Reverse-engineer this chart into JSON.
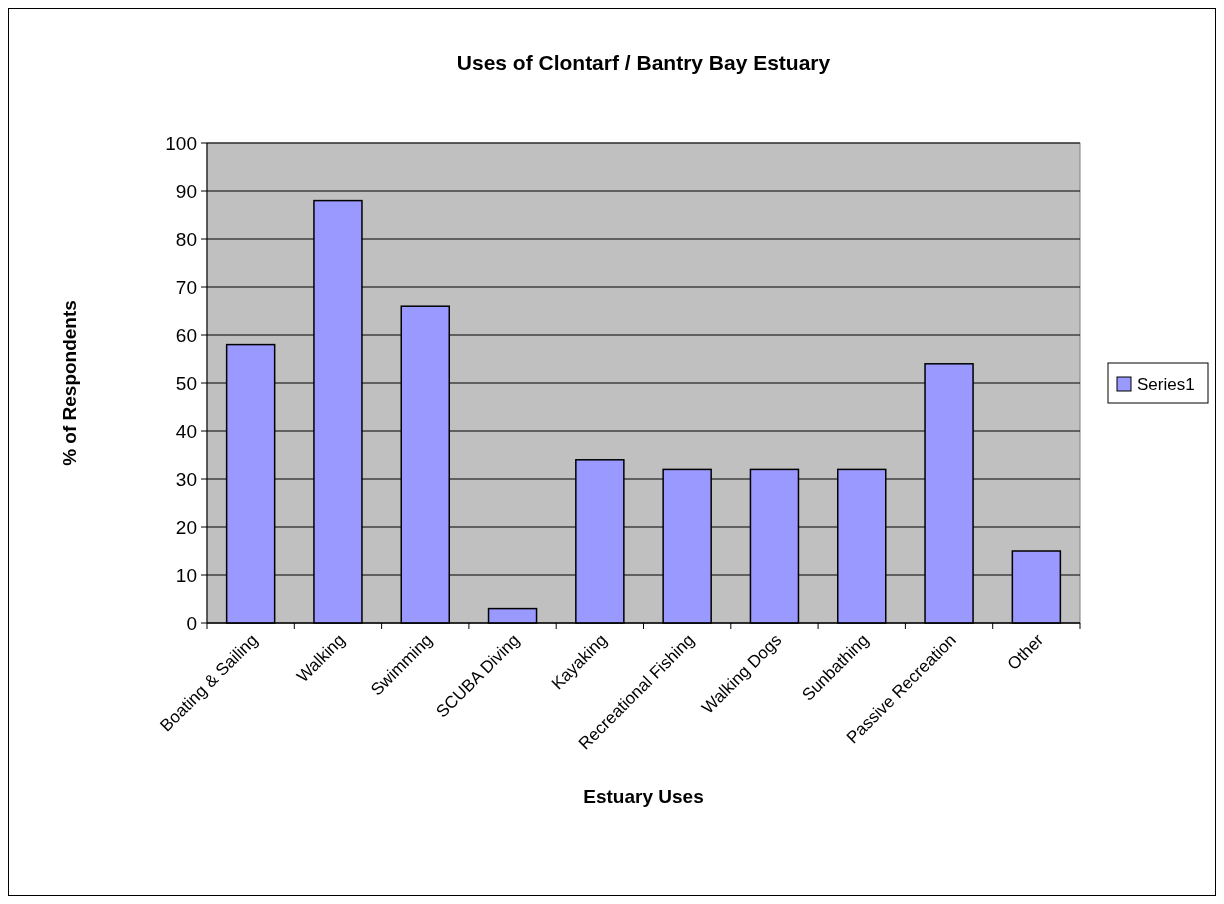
{
  "chart_data": {
    "type": "bar",
    "title": "Uses of Clontarf / Bantry Bay Estuary",
    "xlabel": "Estuary Uses",
    "ylabel": "% of Respondents",
    "categories": [
      "Boating & Sailing",
      "Walking",
      "Swimming",
      "SCUBA Diving",
      "Kayaking",
      "Recreational Fishing",
      "Walking Dogs",
      "Sunbathing",
      "Passive Recreation",
      "Other"
    ],
    "series": [
      {
        "name": "Series1",
        "color": "#9999ff",
        "values": [
          58,
          88,
          66,
          3,
          34,
          32,
          32,
          32,
          54,
          15
        ]
      }
    ],
    "ylim": [
      0,
      100
    ],
    "yticks": [
      0,
      10,
      20,
      30,
      40,
      50,
      60,
      70,
      80,
      90,
      100
    ],
    "grid": "y",
    "legend": "right"
  }
}
